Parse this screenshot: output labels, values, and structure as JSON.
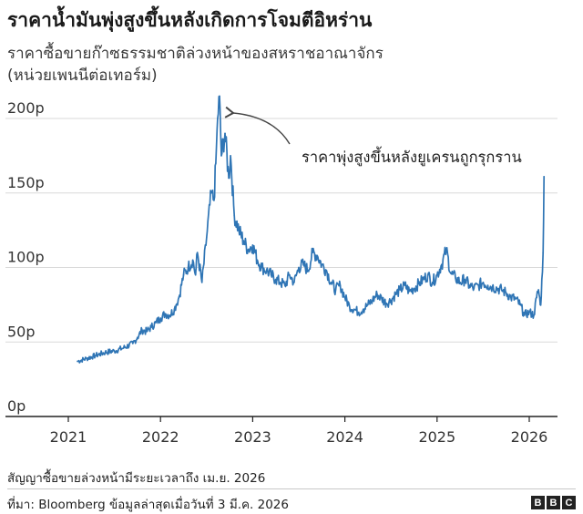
{
  "header": {
    "title": "ราคาน้ำมันพุ่งสูงขึ้นหลังเกิดการโจมตีอิหร่าน",
    "subtitle_line1": "ราคาซื้อขายก๊าซธรรมชาติล่วงหน้าของสหราชอาณาจักร",
    "subtitle_line2": "(หน่วยเพนนีต่อเทอร์ม)"
  },
  "footer": {
    "note": "สัญญาซื้อขายล่วงหน้ามีระยะเวลาถึง เม.ย. 2026",
    "source": "ที่มา: Bloomberg ข้อมูลล่าสุดเมื่อวันที่ 3 มี.ค. 2026",
    "logo_letters": [
      "B",
      "B",
      "C"
    ]
  },
  "colors": {
    "line": "#2f75b5",
    "grid": "#d9d9d9",
    "axis": "#222222"
  },
  "chart_data": {
    "type": "line",
    "x_unit": "year",
    "xlim": [
      2021.0,
      2026.2
    ],
    "ylim": [
      0,
      220
    ],
    "grid": "horizontal",
    "y_ticks": [
      0,
      50,
      100,
      150,
      200
    ],
    "y_tick_labels": [
      "0p",
      "50p",
      "100p",
      "150p",
      "200p"
    ],
    "x_ticks": [
      2021,
      2022,
      2023,
      2024,
      2025,
      2026
    ],
    "x_tick_labels": [
      "2021",
      "2022",
      "2023",
      "2024",
      "2025",
      "2026"
    ],
    "annotation": {
      "text": "ราคาพุ่งสูงขึ้นหลังยูเครนถูกรุกราน",
      "x": 2022.64,
      "y": 215
    },
    "series": [
      {
        "x": [
          2021.1,
          2021.2,
          2021.3,
          2021.4,
          2021.5,
          2021.6,
          2021.7,
          2021.75,
          2021.8,
          2021.85,
          2021.9,
          2021.95,
          2022.0,
          2022.05,
          2022.1,
          2022.15,
          2022.17,
          2022.2,
          2022.25,
          2022.3,
          2022.35,
          2022.38,
          2022.4,
          2022.45,
          2022.5,
          2022.55,
          2022.58,
          2022.6,
          2022.62,
          2022.64,
          2022.66,
          2022.7,
          2022.74,
          2022.76,
          2022.8,
          2022.85,
          2022.9,
          2022.95,
          2023.0,
          2023.05,
          2023.1,
          2023.15,
          2023.2,
          2023.25,
          2023.3,
          2023.35,
          2023.4,
          2023.45,
          2023.5,
          2023.55,
          2023.6,
          2023.65,
          2023.7,
          2023.75,
          2023.8,
          2023.85,
          2023.9,
          2023.95,
          2024.0,
          2024.05,
          2024.1,
          2024.15,
          2024.2,
          2024.25,
          2024.3,
          2024.35,
          2024.4,
          2024.45,
          2024.5,
          2024.55,
          2024.6,
          2024.65,
          2024.7,
          2024.75,
          2024.8,
          2024.85,
          2024.9,
          2024.95,
          2025.0,
          2025.05,
          2025.1,
          2025.15,
          2025.2,
          2025.25,
          2025.3,
          2025.35,
          2025.4,
          2025.45,
          2025.5,
          2025.55,
          2025.6,
          2025.65,
          2025.7,
          2025.75,
          2025.8,
          2025.85,
          2025.9,
          2025.95,
          2026.0,
          2026.05,
          2026.08,
          2026.1,
          2026.12,
          2026.13,
          2026.15,
          2026.16
        ],
        "y": [
          37,
          39,
          41,
          43,
          44,
          46,
          49,
          53,
          58,
          57,
          60,
          63,
          66,
          69,
          68,
          72,
          75,
          80,
          95,
          100,
          105,
          95,
          110,
          90,
          120,
          150,
          145,
          170,
          200,
          215,
          175,
          190,
          160,
          175,
          135,
          125,
          118,
          112,
          115,
          105,
          100,
          98,
          95,
          92,
          90,
          88,
          95,
          90,
          100,
          102,
          98,
          110,
          108,
          102,
          98,
          90,
          85,
          88,
          80,
          74,
          72,
          70,
          72,
          75,
          78,
          82,
          79,
          76,
          78,
          82,
          85,
          88,
          84,
          86,
          89,
          92,
          95,
          90,
          95,
          102,
          112,
          96,
          93,
          90,
          92,
          88,
          86,
          88,
          90,
          88,
          87,
          86,
          85,
          83,
          80,
          79,
          75,
          68,
          70,
          68,
          80,
          85,
          75,
          80,
          110,
          161
        ]
      }
    ]
  }
}
